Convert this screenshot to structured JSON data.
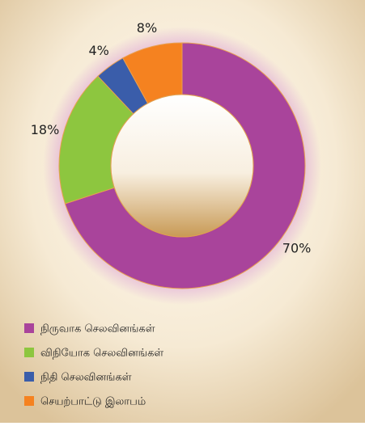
{
  "chart_data": {
    "type": "donut",
    "categories": [
      "நிருவாக செலவினங்கள்",
      "விநியோக செலவினங்கள்",
      "நிதி செலவினங்கள்",
      "செயற்பாட்டு இலாபம்"
    ],
    "values": [
      70,
      18,
      4,
      8
    ],
    "value_labels": [
      "70%",
      "18%",
      "4%",
      "8%"
    ],
    "colors": [
      "#a9449b",
      "#8dc63f",
      "#3a5daa",
      "#f58220"
    ],
    "legend": "bottom-left"
  }
}
